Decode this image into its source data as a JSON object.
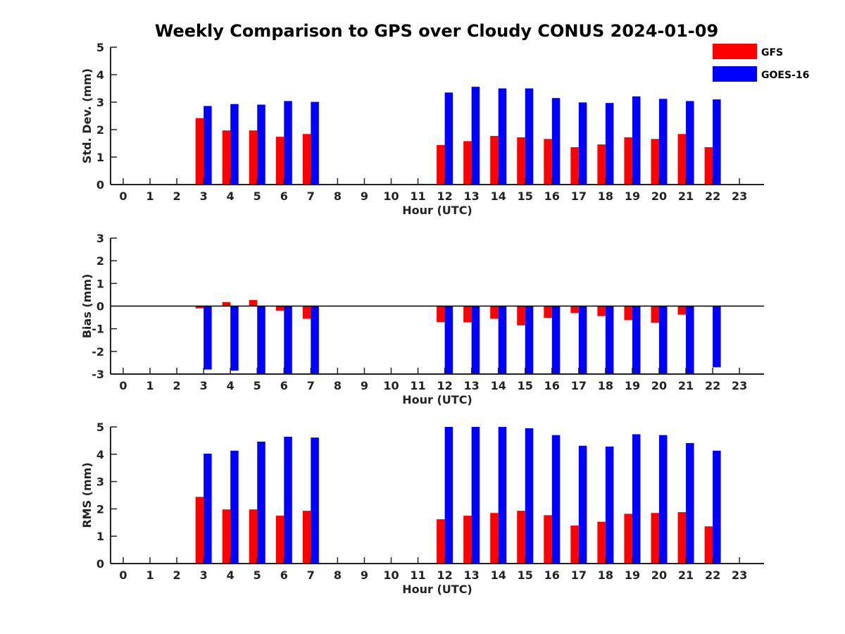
{
  "title": "Weekly Comparison to GPS over Cloudy CONUS 2024-01-09",
  "colors": {
    "GFS": "#ff0000",
    "GOES-16": "#0000ff"
  },
  "chart_data": [
    {
      "type": "bar",
      "xlabel": "Hour (UTC)",
      "ylabel": "Std. Dev. (mm)",
      "ylim": [
        0,
        5
      ],
      "categories": [
        "0",
        "1",
        "2",
        "3",
        "4",
        "5",
        "6",
        "7",
        "8",
        "9",
        "10",
        "11",
        "12",
        "13",
        "14",
        "15",
        "16",
        "17",
        "18",
        "19",
        "20",
        "21",
        "22",
        "23"
      ],
      "series": [
        {
          "name": "GFS",
          "values": [
            null,
            null,
            null,
            2.42,
            1.97,
            1.97,
            1.74,
            1.84,
            null,
            null,
            null,
            null,
            1.44,
            1.58,
            1.77,
            1.72,
            1.66,
            1.36,
            1.46,
            1.72,
            1.66,
            1.84,
            1.36,
            null
          ]
        },
        {
          "name": "GOES-16",
          "values": [
            null,
            null,
            null,
            2.86,
            2.93,
            2.91,
            3.04,
            3.01,
            null,
            null,
            null,
            null,
            3.35,
            3.56,
            3.5,
            3.5,
            3.15,
            2.99,
            2.97,
            3.21,
            3.12,
            3.04,
            3.1,
            null
          ]
        }
      ],
      "legend": "top-right"
    },
    {
      "type": "bar",
      "xlabel": "Hour (UTC)",
      "ylabel": "Bias (mm)",
      "ylim": [
        -3,
        3
      ],
      "categories": [
        "0",
        "1",
        "2",
        "3",
        "4",
        "5",
        "6",
        "7",
        "8",
        "9",
        "10",
        "11",
        "12",
        "13",
        "14",
        "15",
        "16",
        "17",
        "18",
        "19",
        "20",
        "21",
        "22",
        "23"
      ],
      "series": [
        {
          "name": "GFS",
          "values": [
            null,
            null,
            null,
            -0.1,
            0.18,
            0.27,
            -0.2,
            -0.56,
            null,
            null,
            null,
            null,
            -0.71,
            -0.72,
            -0.56,
            -0.85,
            -0.52,
            -0.31,
            -0.44,
            -0.62,
            -0.74,
            -0.38,
            0,
            null
          ]
        },
        {
          "name": "GOES-16",
          "values": [
            null,
            null,
            null,
            -2.8,
            -2.85,
            -3,
            -3,
            -3,
            null,
            null,
            null,
            null,
            -3,
            -3,
            -3,
            -3,
            -3,
            -3,
            -3,
            -3,
            -3,
            -3,
            -2.7,
            null
          ]
        }
      ]
    },
    {
      "type": "bar",
      "xlabel": "Hour (UTC)",
      "ylabel": "RMS (mm)",
      "ylim": [
        0,
        5
      ],
      "categories": [
        "0",
        "1",
        "2",
        "3",
        "4",
        "5",
        "6",
        "7",
        "8",
        "9",
        "10",
        "11",
        "12",
        "13",
        "14",
        "15",
        "16",
        "17",
        "18",
        "19",
        "20",
        "21",
        "22",
        "23"
      ],
      "series": [
        {
          "name": "GFS",
          "values": [
            null,
            null,
            null,
            2.44,
            1.98,
            1.98,
            1.75,
            1.93,
            null,
            null,
            null,
            null,
            1.62,
            1.75,
            1.85,
            1.93,
            1.77,
            1.39,
            1.53,
            1.82,
            1.85,
            1.88,
            1.36,
            null
          ]
        },
        {
          "name": "GOES-16",
          "values": [
            null,
            null,
            null,
            4.02,
            4.13,
            4.46,
            4.64,
            4.61,
            null,
            null,
            null,
            null,
            5,
            5,
            5,
            4.95,
            4.7,
            4.31,
            4.28,
            4.73,
            4.7,
            4.41,
            4.13,
            null
          ]
        }
      ]
    }
  ]
}
